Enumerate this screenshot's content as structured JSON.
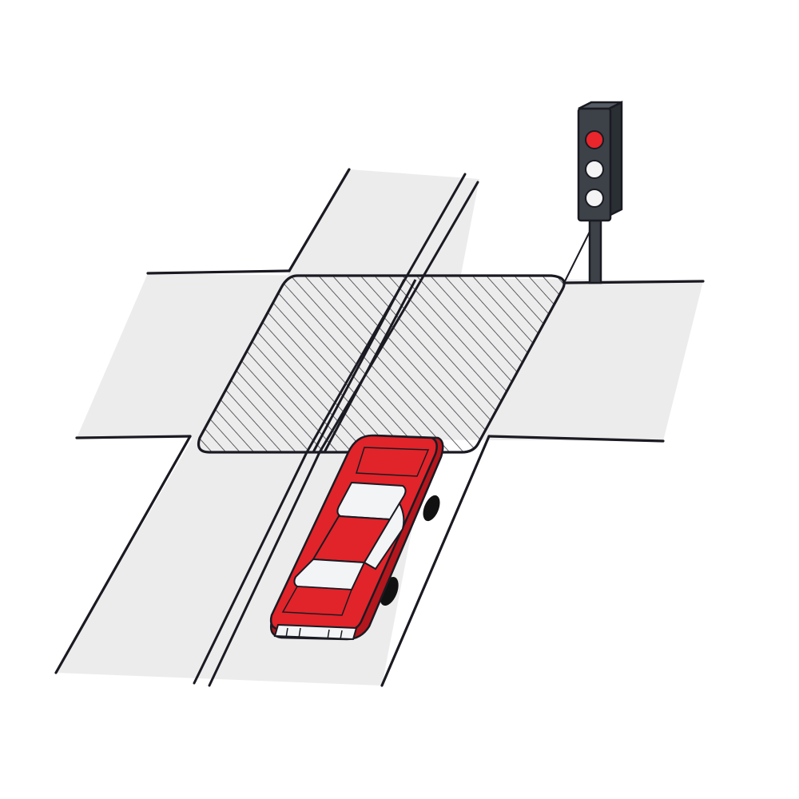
{
  "scene": {
    "subject": "car-stopped-before-box-junction-at-red-light",
    "signal_state": "red",
    "colors": {
      "background": "#ffffff",
      "road_surface": "#ececec",
      "line": "#1a1a22",
      "box_junction_hatch": "#2a2a33",
      "car_body": "#e0242a",
      "car_body_dark": "#b3161c",
      "car_glass": "#f2f4f6",
      "tyre": "#111111",
      "signal_housing": "#3c4248",
      "signal_red_lamp": "#e8262c",
      "signal_off_lamp": "#f4f4f4"
    },
    "icons": {
      "traffic_light": "traffic-light-icon",
      "car": "car-icon"
    }
  }
}
